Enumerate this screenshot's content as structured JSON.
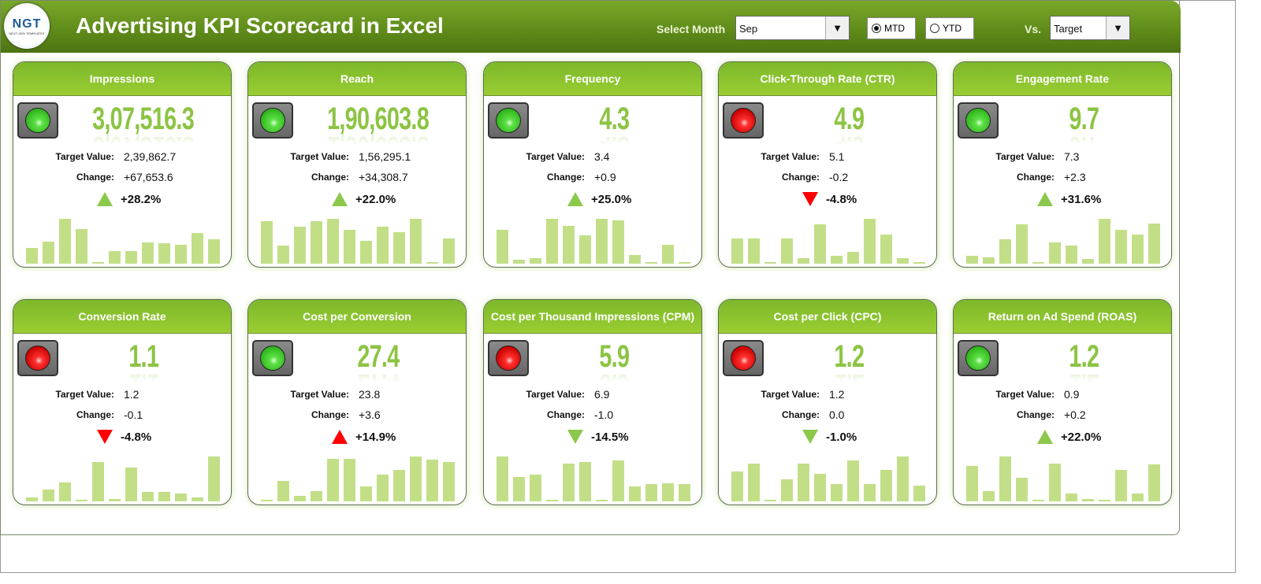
{
  "header": {
    "title": "Advertising KPI Scorecard in Excel",
    "logo_text": "NGT",
    "logo_sub": "NEXT GEN TEMPLATES",
    "select_month_label": "Select Month",
    "month": "Sep",
    "mtd": "MTD",
    "ytd": "YTD",
    "selected_period": "MTD",
    "vs_label": "Vs.",
    "vs_value": "Target"
  },
  "labels": {
    "target": "Target Value:",
    "change": "Change:"
  },
  "colors": {
    "accent": "#7cb82a",
    "good": "#8cc84b",
    "bad": "#ff0000",
    "bar": "#c2df88"
  },
  "cards": [
    {
      "title": "Impressions",
      "value": "3,07,516.3",
      "target": "2,39,862.7",
      "change": "+67,653.6",
      "pct": "+28.2%",
      "status": "green",
      "arrow": "up",
      "arrow_color": "#8cc84b",
      "trend": [
        35,
        50,
        100,
        77,
        3,
        28,
        28,
        47,
        45,
        42,
        68,
        55
      ]
    },
    {
      "title": "Reach",
      "value": "1,90,603.8",
      "target": "1,56,295.1",
      "change": "+34,308.7",
      "pct": "+22.0%",
      "status": "green",
      "arrow": "up",
      "arrow_color": "#8cc84b",
      "trend": [
        95,
        40,
        83,
        95,
        100,
        75,
        51,
        83,
        71,
        100,
        3,
        56
      ]
    },
    {
      "title": "Frequency",
      "value": "4.3",
      "target": "3.4",
      "change": "+0.9",
      "pct": "+25.0%",
      "status": "green",
      "arrow": "up",
      "arrow_color": "#8cc84b",
      "trend": [
        76,
        9,
        12,
        100,
        84,
        63,
        100,
        97,
        20,
        3,
        42,
        3
      ]
    },
    {
      "title": "Click-Through Rate (CTR)",
      "value": "4.9",
      "target": "5.1",
      "change": "-0.2",
      "pct": "-4.8%",
      "status": "red",
      "arrow": "down",
      "arrow_color": "#ff0000",
      "trend": [
        56,
        56,
        3,
        56,
        13,
        87,
        18,
        26,
        100,
        65,
        13,
        3
      ]
    },
    {
      "title": "Engagement Rate",
      "value": "9.7",
      "target": "7.3",
      "change": "+2.3",
      "pct": "+31.6%",
      "status": "green",
      "arrow": "up",
      "arrow_color": "#8cc84b",
      "trend": [
        17,
        14,
        55,
        88,
        3,
        47,
        40,
        10,
        100,
        75,
        65,
        90
      ]
    },
    {
      "title": "Conversion Rate",
      "value": "1.1",
      "target": "1.2",
      "change": "-0.1",
      "pct": "-4.8%",
      "status": "red",
      "arrow": "down",
      "arrow_color": "#ff0000",
      "trend": [
        9,
        26,
        43,
        3,
        88,
        5,
        75,
        21,
        21,
        18,
        9,
        100
      ]
    },
    {
      "title": "Cost per Conversion",
      "value": "27.4",
      "target": "23.8",
      "change": "+3.6",
      "pct": "+14.9%",
      "status": "green",
      "arrow": "up",
      "arrow_color": "#ff0000",
      "trend": [
        3,
        45,
        12,
        22,
        95,
        95,
        33,
        60,
        70,
        100,
        93,
        88
      ]
    },
    {
      "title": "Cost per Thousand Impressions (CPM)",
      "value": "5.9",
      "target": "6.9",
      "change": "-1.0",
      "pct": "-14.5%",
      "status": "red",
      "arrow": "down",
      "arrow_color": "#8cc84b",
      "trend": [
        100,
        55,
        60,
        3,
        85,
        88,
        3,
        92,
        33,
        38,
        40,
        38
      ]
    },
    {
      "title": "Cost per Click (CPC)",
      "value": "1.2",
      "target": "1.2",
      "change": "0.0",
      "pct": "-1.0%",
      "status": "red",
      "arrow": "down",
      "arrow_color": "#8cc84b",
      "trend": [
        67,
        84,
        3,
        49,
        84,
        61,
        39,
        91,
        39,
        70,
        100,
        35
      ]
    },
    {
      "title": "Return on Ad Spend (ROAS)",
      "value": "1.2",
      "target": "0.9",
      "change": "+0.2",
      "pct": "+22.0%",
      "status": "green",
      "arrow": "up",
      "arrow_color": "#8cc84b",
      "trend": [
        79,
        23,
        100,
        53,
        3,
        84,
        18,
        5,
        3,
        70,
        18,
        82
      ]
    }
  ]
}
